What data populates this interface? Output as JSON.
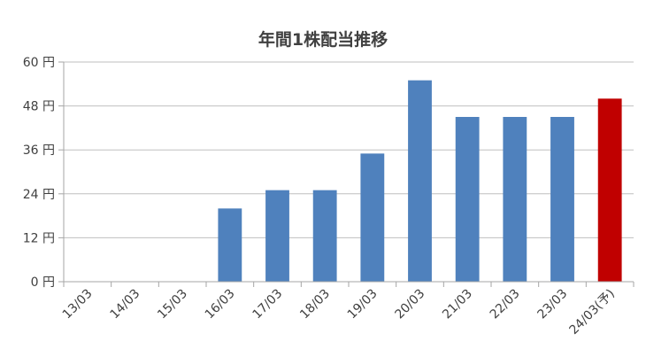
{
  "chart_data": {
    "type": "bar",
    "title": "年間1株配当推移",
    "xlabel": "",
    "ylabel": "",
    "ylim": [
      0,
      60
    ],
    "yticks": [
      0,
      12,
      24,
      36,
      48,
      60
    ],
    "ytick_suffix": " 円",
    "grid": true,
    "legend": "none",
    "categories": [
      "13/03",
      "14/03",
      "15/03",
      "16/03",
      "17/03",
      "18/03",
      "19/03",
      "20/03",
      "21/03",
      "22/03",
      "23/03",
      "24/03(予)"
    ],
    "values": [
      0,
      0,
      0,
      20,
      25,
      25,
      35,
      55,
      45,
      45,
      45,
      50
    ],
    "colors": {
      "actual": "#4f81bd",
      "forecast": "#c00000",
      "grid": "#bfbfbf",
      "axis": "#a6a6a6"
    },
    "forecast_index": 11
  }
}
